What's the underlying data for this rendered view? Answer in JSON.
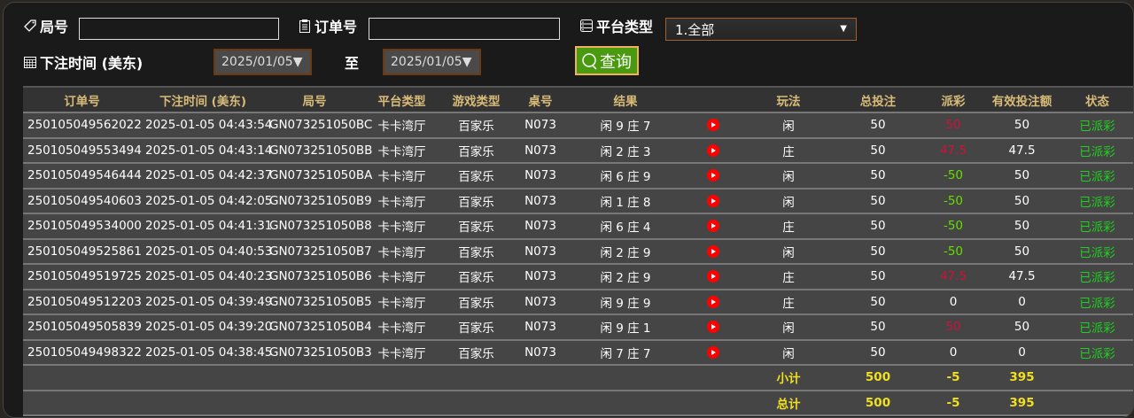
{
  "filters": {
    "round_label": "局号",
    "round_value": "",
    "order_label": "订单号",
    "order_value": "",
    "platform_label": "平台类型",
    "platform_value": "1.全部",
    "time_label": "下注时间 (美东)",
    "date_from": "2025/01/05▼",
    "to_label": "至",
    "date_to": "2025/01/05▼",
    "query_label": "查询"
  },
  "columns": [
    "订单号",
    "下注时间 (美东)",
    "局号",
    "平台类型",
    "游戏类型",
    "桌号",
    "结果",
    "",
    "玩法",
    "总投注",
    "派彩",
    "有效投注额",
    "状态"
  ],
  "rows": [
    [
      "250105049562022",
      "2025-01-05 04:43:54",
      "GN073251050BC",
      "卡卡湾厅",
      "百家乐",
      "N073",
      "闲 9 庄 7",
      "闲",
      "50",
      "50",
      "50",
      "已派彩",
      "red"
    ],
    [
      "250105049553494",
      "2025-01-05 04:43:14",
      "GN073251050BB",
      "卡卡湾厅",
      "百家乐",
      "N073",
      "闲 2 庄 3",
      "庄",
      "50",
      "47.5",
      "47.5",
      "已派彩",
      "red"
    ],
    [
      "250105049546444",
      "2025-01-05 04:42:37",
      "GN073251050BA",
      "卡卡湾厅",
      "百家乐",
      "N073",
      "闲 6 庄 9",
      "闲",
      "50",
      "-50",
      "50",
      "已派彩",
      "grn"
    ],
    [
      "250105049540603",
      "2025-01-05 04:42:05",
      "GN073251050B9",
      "卡卡湾厅",
      "百家乐",
      "N073",
      "闲 1 庄 8",
      "闲",
      "50",
      "-50",
      "50",
      "已派彩",
      "grn"
    ],
    [
      "250105049534000",
      "2025-01-05 04:41:31",
      "GN073251050B8",
      "卡卡湾厅",
      "百家乐",
      "N073",
      "闲 6 庄 4",
      "庄",
      "50",
      "-50",
      "50",
      "已派彩",
      "grn"
    ],
    [
      "250105049525861",
      "2025-01-05 04:40:53",
      "GN073251050B7",
      "卡卡湾厅",
      "百家乐",
      "N073",
      "闲 2 庄 9",
      "闲",
      "50",
      "-50",
      "50",
      "已派彩",
      "grn"
    ],
    [
      "250105049519725",
      "2025-01-05 04:40:23",
      "GN073251050B6",
      "卡卡湾厅",
      "百家乐",
      "N073",
      "闲 2 庄 9",
      "庄",
      "50",
      "47.5",
      "47.5",
      "已派彩",
      "red"
    ],
    [
      "250105049512203",
      "2025-01-05 04:39:49",
      "GN073251050B5",
      "卡卡湾厅",
      "百家乐",
      "N073",
      "闲 9 庄 9",
      "庄",
      "50",
      "0",
      "0",
      "已派彩",
      ""
    ],
    [
      "250105049505839",
      "2025-01-05 04:39:20",
      "GN073251050B4",
      "卡卡湾厅",
      "百家乐",
      "N073",
      "闲 9 庄 1",
      "闲",
      "50",
      "50",
      "50",
      "已派彩",
      "red"
    ],
    [
      "250105049498322",
      "2025-01-05 04:38:45",
      "GN073251050B3",
      "卡卡湾厅",
      "百家乐",
      "N073",
      "闲 7 庄 7",
      "闲",
      "50",
      "0",
      "0",
      "已派彩",
      ""
    ]
  ],
  "subtotal": {
    "label": "小计",
    "total_bet": "500",
    "payout": "-5",
    "valid_bet": "395"
  },
  "total": {
    "label": "总计",
    "total_bet": "500",
    "payout": "-5",
    "valid_bet": "395"
  },
  "colors": {
    "header_text": "#d8bb78",
    "payout_positive": "#d0103a",
    "payout_negative": "#66dd00",
    "status": "#1ed11e",
    "sum_text": "#f0e020",
    "query_button": "#4a9a10"
  }
}
